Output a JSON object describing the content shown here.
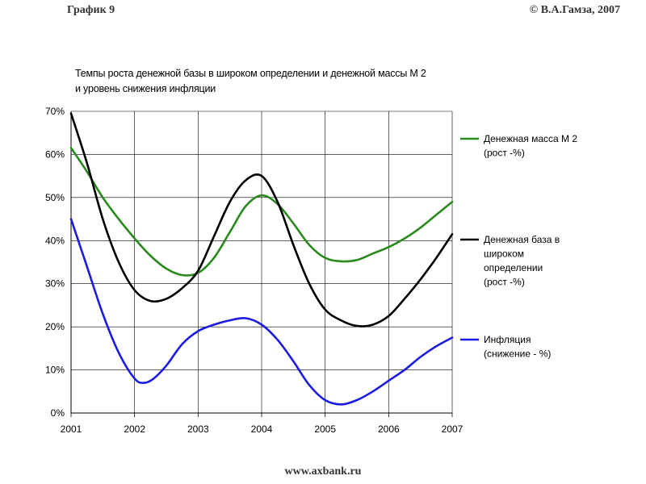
{
  "header": {
    "left": "График 9",
    "right": "© В.А.Гамза, 2007"
  },
  "footer": {
    "url": "www.axbank.ru"
  },
  "colors": {
    "green": "#2a8a1e",
    "black": "#000000",
    "blue": "#1a1ae6",
    "grid": "#000000"
  },
  "chart_data": {
    "type": "line",
    "title": [
      "Темпы роста денежной базы в широком определении и денежной массы М 2",
      "и уровень снижения инфляции"
    ],
    "xlabel": "",
    "ylabel": "",
    "x_ticks": [
      "2001",
      "2002",
      "2003",
      "2004",
      "2005",
      "2006",
      "2007"
    ],
    "y_ticks": [
      "0%",
      "10%",
      "20%",
      "30%",
      "40%",
      "50%",
      "60%",
      "70%"
    ],
    "xlim": [
      2001,
      2007
    ],
    "ylim": [
      0,
      70
    ],
    "legend_position": "right",
    "series": [
      {
        "name": [
          "Денежная масса М 2",
          "(рост -%)"
        ],
        "color": "green",
        "points": [
          [
            2001,
            61.5
          ],
          [
            2001.25,
            56
          ],
          [
            2001.5,
            50
          ],
          [
            2001.75,
            45
          ],
          [
            2002,
            40.5
          ],
          [
            2002.25,
            36.5
          ],
          [
            2002.5,
            33.5
          ],
          [
            2002.75,
            32
          ],
          [
            2003,
            32.5
          ],
          [
            2003.25,
            36
          ],
          [
            2003.5,
            42
          ],
          [
            2003.75,
            48
          ],
          [
            2004,
            50.5
          ],
          [
            2004.25,
            48.5
          ],
          [
            2004.5,
            44
          ],
          [
            2004.75,
            39
          ],
          [
            2005,
            36
          ],
          [
            2005.25,
            35.2
          ],
          [
            2005.5,
            35.5
          ],
          [
            2005.75,
            37
          ],
          [
            2006,
            38.5
          ],
          [
            2006.25,
            40.5
          ],
          [
            2006.5,
            43
          ],
          [
            2006.75,
            46
          ],
          [
            2007,
            49
          ]
        ]
      },
      {
        "name": [
          "Денежная база в",
          "широком",
          "определении",
          "(рост -%)"
        ],
        "color": "black",
        "points": [
          [
            2001,
            69.5
          ],
          [
            2001.25,
            58
          ],
          [
            2001.5,
            45
          ],
          [
            2001.75,
            35
          ],
          [
            2002,
            28.5
          ],
          [
            2002.25,
            26
          ],
          [
            2002.5,
            26.5
          ],
          [
            2002.75,
            29
          ],
          [
            2003,
            33
          ],
          [
            2003.25,
            41
          ],
          [
            2003.5,
            49
          ],
          [
            2003.75,
            54
          ],
          [
            2004,
            55
          ],
          [
            2004.25,
            49
          ],
          [
            2004.5,
            39
          ],
          [
            2004.75,
            30
          ],
          [
            2005,
            24
          ],
          [
            2005.25,
            21.5
          ],
          [
            2005.5,
            20.2
          ],
          [
            2005.75,
            20.5
          ],
          [
            2006,
            22.5
          ],
          [
            2006.25,
            26.5
          ],
          [
            2006.5,
            31
          ],
          [
            2006.75,
            36
          ],
          [
            2007,
            41.5
          ]
        ]
      },
      {
        "name": [
          "Инфляция",
          "(снижение - %)"
        ],
        "color": "blue",
        "points": [
          [
            2001,
            45
          ],
          [
            2001.25,
            34
          ],
          [
            2001.5,
            23
          ],
          [
            2001.75,
            14
          ],
          [
            2002,
            8
          ],
          [
            2002.15,
            7
          ],
          [
            2002.3,
            8
          ],
          [
            2002.5,
            11
          ],
          [
            2002.75,
            16
          ],
          [
            2003,
            19
          ],
          [
            2003.25,
            20.5
          ],
          [
            2003.5,
            21.5
          ],
          [
            2003.75,
            22
          ],
          [
            2004,
            20.5
          ],
          [
            2004.25,
            17
          ],
          [
            2004.5,
            12
          ],
          [
            2004.75,
            6.5
          ],
          [
            2005,
            3
          ],
          [
            2005.25,
            2
          ],
          [
            2005.5,
            3
          ],
          [
            2005.75,
            5
          ],
          [
            2006,
            7.5
          ],
          [
            2006.25,
            10
          ],
          [
            2006.5,
            13
          ],
          [
            2006.75,
            15.5
          ],
          [
            2007,
            17.5
          ]
        ]
      }
    ]
  }
}
